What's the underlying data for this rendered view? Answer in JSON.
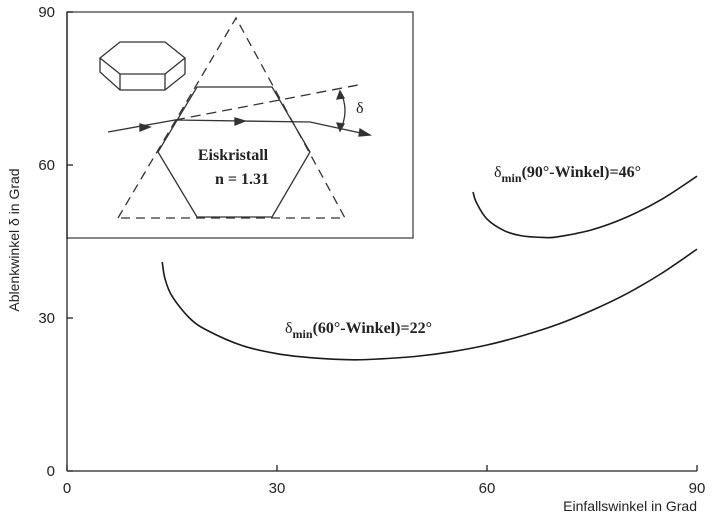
{
  "chart_data": {
    "type": "line",
    "xlabel": "Einfallswinkel in Grad",
    "ylabel": "Ablenkwinkel δ in Grad",
    "xlim": [
      0,
      90
    ],
    "xticks": [
      0,
      30,
      60,
      90
    ],
    "ylim": [
      0,
      90
    ],
    "yticks": [
      0,
      30,
      60,
      90
    ],
    "grid": false,
    "series": [
      {
        "color": "#1a1a1a",
        "x": [
          13.6,
          14,
          15,
          17.5,
          20,
          25,
          30,
          35,
          40.9,
          45,
          50,
          55,
          60,
          65,
          70,
          75,
          80,
          85,
          90
        ],
        "values": [
          41,
          37.7,
          34.3,
          30.0,
          27.6,
          24.6,
          23.0,
          22.2,
          21.8,
          22.0,
          22.5,
          23.4,
          24.7,
          26.5,
          28.7,
          31.5,
          34.8,
          38.8,
          43.5
        ]
      },
      {
        "color": "#1a1a1a",
        "x": [
          58,
          58.5,
          60,
          62.5,
          65,
          67.9,
          70,
          75,
          80,
          85,
          90
        ],
        "values": [
          54.7,
          52.6,
          49.4,
          47.1,
          46.1,
          45.8,
          45.9,
          47.3,
          49.8,
          53.3,
          57.8
        ]
      }
    ],
    "annotations": [
      {
        "symbol": "δ",
        "sub": "min",
        "text": "(90°-Winkel)=46°"
      },
      {
        "symbol": "δ",
        "sub": "min",
        "text": "(60°-Winkel)=22°"
      }
    ],
    "inset": {
      "title": "Eiskristall",
      "index": "n = 1.31",
      "angle": "δ"
    }
  }
}
